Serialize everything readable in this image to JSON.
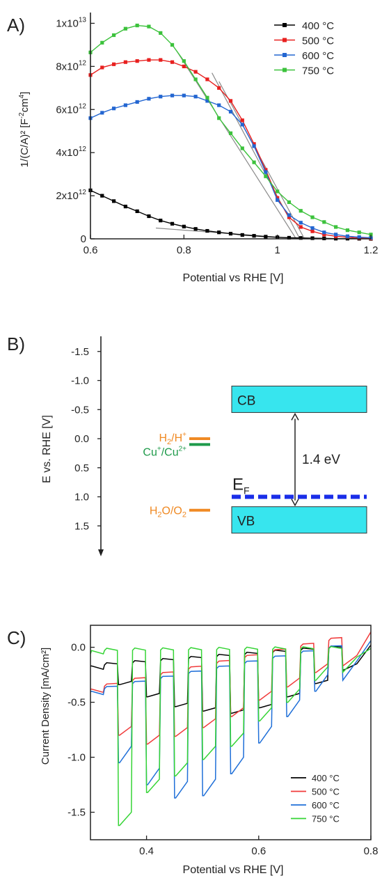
{
  "panel_a": {
    "label": "A)",
    "chart_data": {
      "type": "line",
      "xlabel": "Potential vs RHE [V]",
      "ylabel": {
        "main": "1/(C/A)² [F",
        "sup1": "-2",
        "mid": "cm",
        "sup2": "4",
        "end": "]"
      },
      "xlim": [
        0.6,
        1.2
      ],
      "ylim": [
        0,
        10500000000000.0
      ],
      "xticks": [
        {
          "v": 0.6,
          "label": "0.6"
        },
        {
          "v": 0.8,
          "label": "0.8"
        },
        {
          "v": 1.0,
          "label": "1"
        },
        {
          "v": 1.2,
          "label": "1.2"
        }
      ],
      "yticks": [
        {
          "v": 0,
          "label": "0"
        },
        {
          "v": 2000000000000.0,
          "base": "2x10",
          "exp": "12"
        },
        {
          "v": 4000000000000.0,
          "base": "4x10",
          "exp": "12"
        },
        {
          "v": 6000000000000.0,
          "base": "6x10",
          "exp": "12"
        },
        {
          "v": 8000000000000.0,
          "base": "8x10",
          "exp": "12"
        },
        {
          "v": 10000000000000.0,
          "base": "1x10",
          "exp": "13"
        }
      ],
      "legend_position": "top-right",
      "series": [
        {
          "name": "400 °C",
          "color": "#000000",
          "x": [
            0.6,
            0.625,
            0.65,
            0.675,
            0.7,
            0.725,
            0.75,
            0.775,
            0.8,
            0.825,
            0.85,
            0.875,
            0.9,
            0.925,
            0.95,
            0.975,
            1.0,
            1.025,
            1.05,
            1.075,
            1.1,
            1.125,
            1.15,
            1.175,
            1.2
          ],
          "y": [
            2250000000000.0,
            2000000000000.0,
            1750000000000.0,
            1500000000000.0,
            1280000000000.0,
            1050000000000.0,
            850000000000.0,
            700000000000.0,
            570000000000.0,
            460000000000.0,
            370000000000.0,
            300000000000.0,
            240000000000.0,
            180000000000.0,
            140000000000.0,
            100000000000.0,
            70000000000.0,
            50000000000.0,
            40000000000.0,
            30000000000.0,
            20000000000.0,
            10000000000.0,
            10000000000.0,
            5000000000.0,
            0.0
          ]
        },
        {
          "name": "500 °C",
          "color": "#e8201f",
          "x": [
            0.6,
            0.625,
            0.65,
            0.675,
            0.7,
            0.725,
            0.75,
            0.775,
            0.8,
            0.825,
            0.85,
            0.875,
            0.9,
            0.925,
            0.95,
            0.975,
            1.0,
            1.025,
            1.05,
            1.075,
            1.1,
            1.125,
            1.15,
            1.175,
            1.2
          ],
          "y": [
            7600000000000.0,
            7950000000000.0,
            8100000000000.0,
            8200000000000.0,
            8250000000000.0,
            8300000000000.0,
            8300000000000.0,
            8200000000000.0,
            8000000000000.0,
            7750000000000.0,
            7400000000000.0,
            7000000000000.0,
            6400000000000.0,
            5500000000000.0,
            4400000000000.0,
            3200000000000.0,
            1900000000000.0,
            1000000000000.0,
            550000000000.0,
            350000000000.0,
            200000000000.0,
            120000000000.0,
            70000000000.0,
            40000000000.0,
            20000000000.0
          ]
        },
        {
          "name": "600 °C",
          "color": "#2366d1",
          "x": [
            0.6,
            0.625,
            0.65,
            0.675,
            0.7,
            0.725,
            0.75,
            0.775,
            0.8,
            0.825,
            0.85,
            0.875,
            0.9,
            0.925,
            0.95,
            0.975,
            1.0,
            1.025,
            1.05,
            1.075,
            1.1,
            1.125,
            1.15,
            1.175,
            1.2
          ],
          "y": [
            5600000000000.0,
            5850000000000.0,
            6050000000000.0,
            6200000000000.0,
            6350000000000.0,
            6500000000000.0,
            6600000000000.0,
            6650000000000.0,
            6650000000000.0,
            6600000000000.0,
            6400000000000.0,
            6200000000000.0,
            5900000000000.0,
            5300000000000.0,
            4300000000000.0,
            3100000000000.0,
            1800000000000.0,
            1100000000000.0,
            750000000000.0,
            500000000000.0,
            300000000000.0,
            200000000000.0,
            120000000000.0,
            80000000000.0,
            50000000000.0
          ]
        },
        {
          "name": "750 °C",
          "color": "#3cc23c",
          "x": [
            0.6,
            0.625,
            0.65,
            0.675,
            0.7,
            0.725,
            0.75,
            0.775,
            0.8,
            0.825,
            0.85,
            0.875,
            0.9,
            0.925,
            0.95,
            0.975,
            1.0,
            1.025,
            1.05,
            1.075,
            1.1,
            1.125,
            1.15,
            1.175,
            1.2
          ],
          "y": [
            8650000000000.0,
            9100000000000.0,
            9450000000000.0,
            9750000000000.0,
            9900000000000.0,
            9850000000000.0,
            9550000000000.0,
            9000000000000.0,
            8250000000000.0,
            7400000000000.0,
            6550000000000.0,
            5600000000000.0,
            4900000000000.0,
            4200000000000.0,
            3550000000000.0,
            2900000000000.0,
            2200000000000.0,
            1700000000000.0,
            1300000000000.0,
            1000000000000.0,
            780000000000.0,
            550000000000.0,
            400000000000.0,
            300000000000.0,
            200000000000.0
          ]
        }
      ],
      "fit_lines": [
        {
          "x1": 0.86,
          "y1": 7700000000000.0,
          "x2": 1.048,
          "y2": 0.0
        },
        {
          "x1": 0.875,
          "y1": 7300000000000.0,
          "x2": 1.058,
          "y2": 0.0
        },
        {
          "x1": 0.785,
          "y1": 8700000000000.0,
          "x2": 1.04,
          "y2": 0.0
        },
        {
          "x1": 0.74,
          "y1": 500000000000.0,
          "x2": 1.05,
          "y2": 0.0
        }
      ]
    }
  },
  "panel_b": {
    "label": "B)",
    "chart_data": {
      "type": "diagram",
      "ylabel": "E vs. RHE [V]",
      "ylim": [
        -1.9,
        1.9
      ],
      "yticks": [
        {
          "v": -1.5,
          "label": "-1.5"
        },
        {
          "v": -1.0,
          "label": "-1.0"
        },
        {
          "v": -0.5,
          "label": "-0.5"
        },
        {
          "v": 0.0,
          "label": "0.0"
        },
        {
          "v": 0.5,
          "label": "0.5"
        },
        {
          "v": 1.0,
          "label": "1.0"
        },
        {
          "v": 1.5,
          "label": "1.5"
        }
      ],
      "redox_levels": [
        {
          "main": "H",
          "sub": "2",
          "mid": "/H",
          "sup": "+",
          "tail": "",
          "tail_sup": "",
          "potential": 0.0,
          "color": "#f08a24"
        },
        {
          "main": "Cu",
          "sub": "",
          "mid": "",
          "sup": "+",
          "tail": "/Cu",
          "tail_sup": "2+",
          "potential": 0.1,
          "color": "#1e9a4a"
        },
        {
          "main": "H",
          "sub": "2",
          "mid": "O/O",
          "sup": "",
          "tail": "",
          "tail_sup": "",
          "sub2": "2",
          "potential": 1.23,
          "color": "#f08a24"
        }
      ],
      "cb_label": "CB",
      "cb_bottom": -0.45,
      "vb_label": "VB",
      "vb_top": 1.17,
      "fermi_label": "E",
      "fermi_sub": "F",
      "fermi_level": 1.0,
      "gap_label": "1.4 eV",
      "band_color": "#37e5ee",
      "fermi_color": "#1a2ee8"
    }
  },
  "panel_c": {
    "label": "C)",
    "chart_data": {
      "type": "line",
      "xlabel": "Potential vs RHE [V]",
      "ylabel": "Current Density [mA/cm²]",
      "xlim": [
        0.3,
        0.8
      ],
      "ylim": [
        -1.75,
        0.2
      ],
      "xticks": [
        {
          "v": 0.4,
          "label": "0.4"
        },
        {
          "v": 0.6,
          "label": "0.6"
        },
        {
          "v": 0.8,
          "label": "0.8"
        }
      ],
      "yticks": [
        {
          "v": 0.0,
          "label": "0.0"
        },
        {
          "v": -0.5,
          "label": "-0.5"
        },
        {
          "v": -1.0,
          "label": "-1.0"
        },
        {
          "v": -1.5,
          "label": "-1.5"
        }
      ],
      "legend_position": "bottom-right",
      "chop_windows": [
        [
          0.325,
          0.35
        ],
        [
          0.375,
          0.4
        ],
        [
          0.425,
          0.45
        ],
        [
          0.475,
          0.5
        ],
        [
          0.525,
          0.55
        ],
        [
          0.575,
          0.6
        ],
        [
          0.625,
          0.65
        ],
        [
          0.675,
          0.7
        ],
        [
          0.725,
          0.75
        ]
      ],
      "series": [
        {
          "name": "400 °C",
          "color": "#000000",
          "dark_start": -0.17,
          "dark_end": 0.02,
          "light": [
            -0.2,
            -0.31,
            -0.42,
            -0.51,
            -0.55,
            -0.57,
            -0.52,
            -0.42,
            -0.3
          ],
          "peak_extra": 0.03
        },
        {
          "name": "500 °C",
          "color": "#f03a3a",
          "dark_start": -0.38,
          "dark_end": 0.14,
          "light": [
            -0.55,
            -0.72,
            -0.8,
            -0.73,
            -0.65,
            -0.55,
            -0.4,
            -0.28,
            -0.15
          ],
          "peak_extra": 0.08
        },
        {
          "name": "600 °C",
          "color": "#1f6fd8",
          "dark_start": -0.4,
          "dark_end": 0.06,
          "light": [
            -0.7,
            -0.9,
            -1.1,
            -1.22,
            -1.2,
            -1.0,
            -0.72,
            -0.48,
            -0.25
          ],
          "peak_extra": 0.15
        },
        {
          "name": "750 °C",
          "color": "#35d435",
          "dark_start": -0.03,
          "dark_end": -0.01,
          "light": [
            -1.6,
            -1.5,
            -1.2,
            -1.05,
            -0.9,
            -0.78,
            -0.55,
            -0.38,
            -0.18
          ],
          "peak_extra": 0.12
        }
      ]
    }
  }
}
